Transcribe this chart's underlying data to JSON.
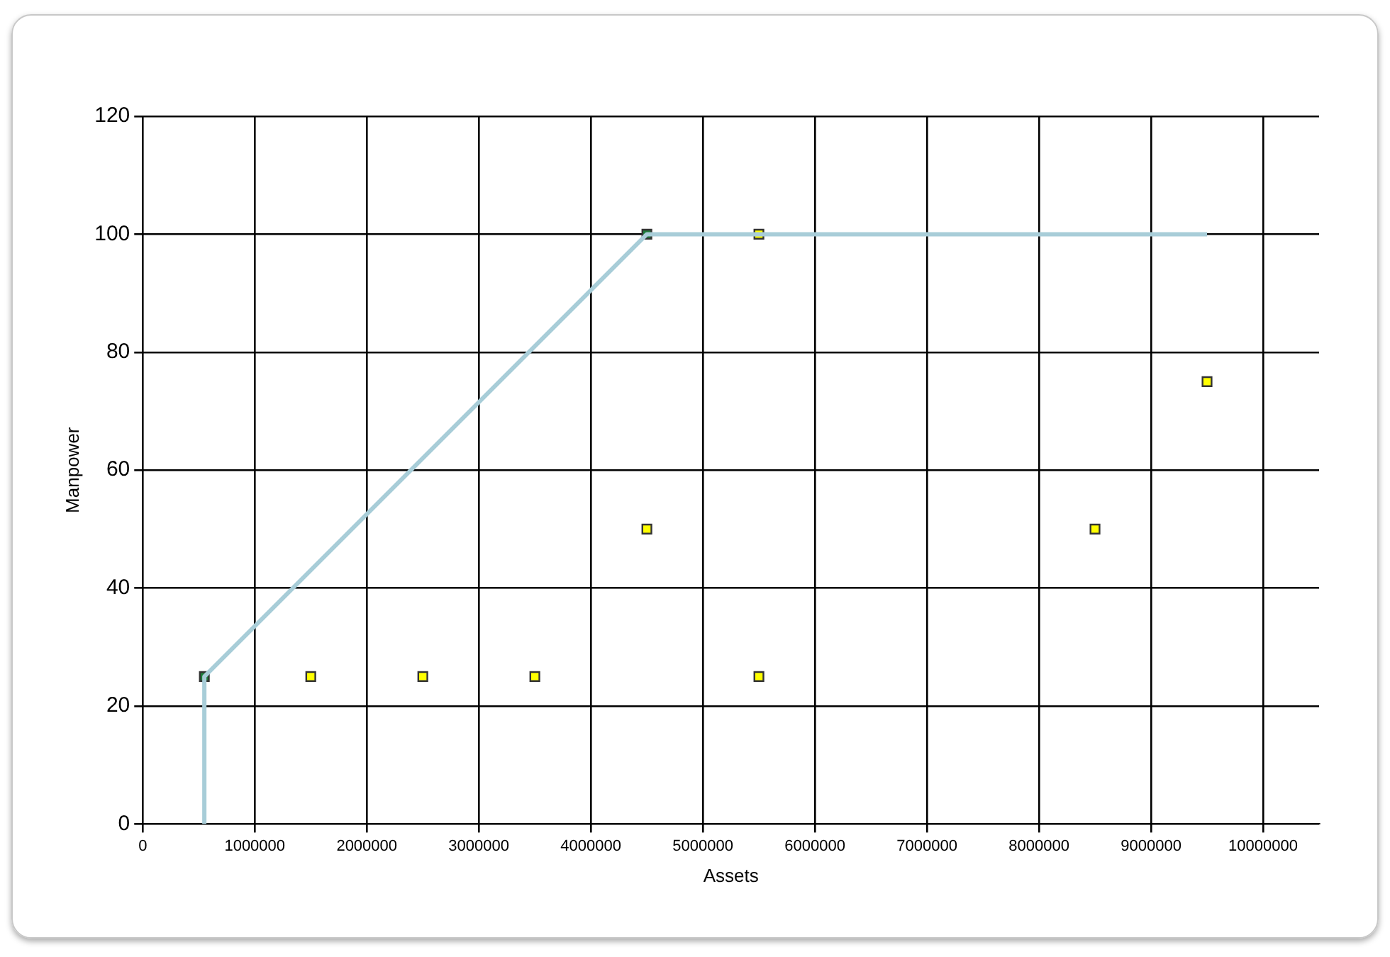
{
  "chart_data": {
    "type": "scatter",
    "xlabel": "Assets",
    "ylabel": "Manpower",
    "xlim": [
      0,
      10500000
    ],
    "xticks": [
      0,
      1000000,
      2000000,
      3000000,
      4000000,
      5000000,
      6000000,
      7000000,
      8000000,
      9000000,
      10000000
    ],
    "ylim": [
      0,
      120
    ],
    "yticks": [
      0,
      20,
      40,
      60,
      80,
      100,
      120
    ],
    "grid": true,
    "marker": "square",
    "legend": false,
    "series": [
      {
        "type": "line",
        "color": "#a8cdd8",
        "marker": "none",
        "x": [
          550000,
          550000,
          4500000,
          9500000
        ],
        "values": [
          0,
          25,
          100,
          100
        ]
      },
      {
        "color": "#1e7a3a",
        "x": [
          550000,
          4500000
        ],
        "values": [
          25,
          100
        ]
      },
      {
        "color": "#ffff00",
        "x": [
          1500000,
          2500000,
          3500000,
          4500000,
          5500000,
          5500000,
          8500000,
          9500000
        ],
        "values": [
          25,
          25,
          25,
          50,
          100,
          25,
          50,
          75
        ]
      }
    ]
  }
}
